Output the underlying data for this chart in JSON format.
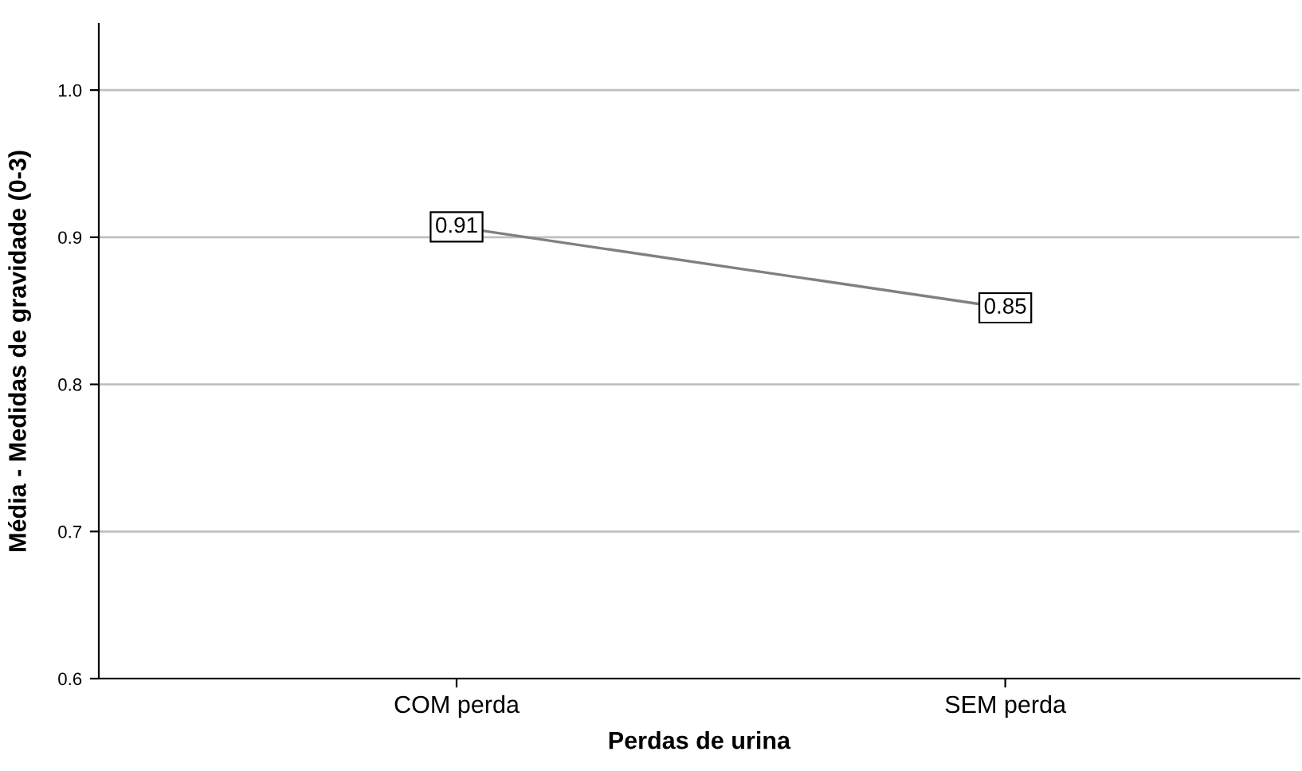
{
  "chart_data": {
    "type": "line",
    "xlabel": "Perdas de urina",
    "ylabel": "Média - Medidas de gravidade (0-3)",
    "categories": [
      "COM perda",
      "SEM perda"
    ],
    "series": [
      {
        "color": "#808080",
        "values": [
          0.907,
          0.852
        ],
        "value_labels": [
          "0.91",
          "0.85"
        ]
      }
    ],
    "ylim": [
      0.6,
      1.045
    ],
    "yticks": [
      0.6,
      0.7,
      0.8,
      0.9,
      {
        "value": 1,
        "label": "1.0"
      }
    ],
    "grid": "y",
    "marker": "square",
    "line_style": "solid"
  }
}
